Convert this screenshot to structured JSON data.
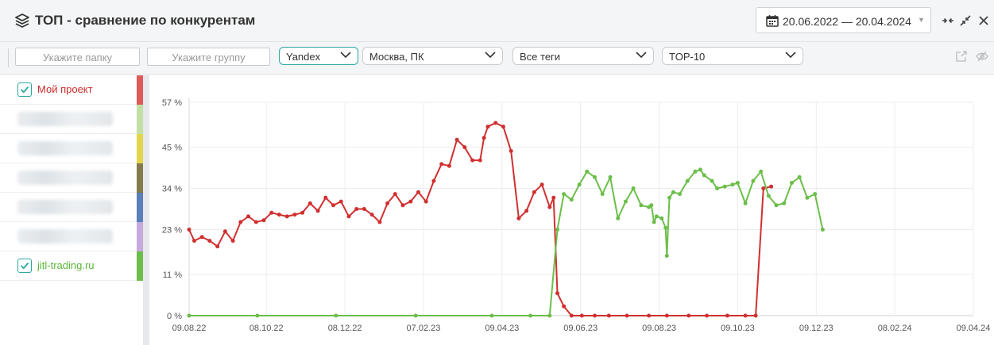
{
  "header": {
    "title": "ТОП - сравнение по конкурентам",
    "date_range": "20.06.2022 — 20.04.2024"
  },
  "filters": {
    "folder_placeholder": "Укажите папку",
    "group_placeholder": "Укажите группу",
    "search_engine": "Yandex",
    "region": "Москва, ПК",
    "tags": "Все теги",
    "top": "TOP-10"
  },
  "legend": {
    "items": [
      {
        "label": "Мой проект",
        "checked": true,
        "color": "#e05a5a",
        "text_color": "#cc2a2a",
        "blurred": false
      },
      {
        "label": "",
        "checked": false,
        "color": "#c2e0a4",
        "blurred": true
      },
      {
        "label": "",
        "checked": false,
        "color": "#e3d64a",
        "blurred": true
      },
      {
        "label": "",
        "checked": false,
        "color": "#857a4c",
        "blurred": true
      },
      {
        "label": "",
        "checked": false,
        "color": "#5b7fba",
        "blurred": true
      },
      {
        "label": "",
        "checked": false,
        "color": "#c6a9dd",
        "blurred": true
      },
      {
        "label": "jitl-trading.ru",
        "checked": true,
        "color": "#6cbe4a",
        "text_color": "#5cb83a",
        "blurred": false
      }
    ]
  },
  "chart_data": {
    "type": "line",
    "xlabel": "",
    "ylabel": "",
    "x_tick_labels": [
      "09.08.22",
      "08.10.22",
      "08.12.22",
      "07.02.23",
      "09.04.23",
      "09.06.23",
      "09.08.23",
      "09.10.23",
      "09.12.23",
      "08.02.24",
      "09.04.24"
    ],
    "y_tick_labels": [
      "0 %",
      "11 %",
      "23 %",
      "34 %",
      "45 %",
      "57 %"
    ],
    "ylim": [
      0,
      57
    ],
    "grid": true,
    "series": [
      {
        "name": "Мой проект",
        "color": "#d0302f",
        "points": [
          [
            "09.08.22",
            23
          ],
          [
            "13.08.22",
            20
          ],
          [
            "19.08.22",
            21
          ],
          [
            "25.08.22",
            20
          ],
          [
            "31.08.22",
            18.5
          ],
          [
            "06.09.22",
            22.5
          ],
          [
            "12.09.22",
            20
          ],
          [
            "18.09.22",
            25
          ],
          [
            "24.09.22",
            26.5
          ],
          [
            "30.09.22",
            25
          ],
          [
            "06.10.22",
            25.5
          ],
          [
            "12.10.22",
            27.5
          ],
          [
            "18.10.22",
            27
          ],
          [
            "24.10.22",
            26.5
          ],
          [
            "30.10.22",
            27
          ],
          [
            "05.11.22",
            27.5
          ],
          [
            "11.11.22",
            30
          ],
          [
            "17.11.22",
            28
          ],
          [
            "23.11.22",
            31.5
          ],
          [
            "29.11.22",
            29.5
          ],
          [
            "05.12.22",
            30.5
          ],
          [
            "11.12.22",
            26.5
          ],
          [
            "17.12.22",
            28.5
          ],
          [
            "23.12.22",
            28.5
          ],
          [
            "29.12.22",
            27
          ],
          [
            "04.01.23",
            25
          ],
          [
            "10.01.23",
            30
          ],
          [
            "16.01.23",
            32.5
          ],
          [
            "22.01.23",
            29.5
          ],
          [
            "28.01.23",
            30.5
          ],
          [
            "03.02.23",
            33
          ],
          [
            "09.02.23",
            30.5
          ],
          [
            "15.02.23",
            36
          ],
          [
            "21.02.23",
            40.5
          ],
          [
            "27.02.23",
            40
          ],
          [
            "05.03.23",
            47
          ],
          [
            "11.03.23",
            45
          ],
          [
            "17.03.23",
            41.5
          ],
          [
            "23.03.23",
            41.5
          ],
          [
            "26.03.23",
            47.5
          ],
          [
            "29.03.23",
            50.5
          ],
          [
            "04.04.23",
            51.5
          ],
          [
            "10.04.23",
            50.5
          ],
          [
            "16.04.23",
            44
          ],
          [
            "22.04.23",
            26
          ],
          [
            "28.04.23",
            28
          ],
          [
            "04.05.23",
            33
          ],
          [
            "10.05.23",
            35
          ],
          [
            "16.05.23",
            29
          ],
          [
            "19.05.23",
            31.5
          ],
          [
            "22.05.23",
            6
          ],
          [
            "27.05.23",
            2.5
          ],
          [
            "02.06.23",
            0
          ],
          [
            "10.06.23",
            0
          ],
          [
            "20.06.23",
            0
          ],
          [
            "01.07.23",
            0
          ],
          [
            "15.07.23",
            0
          ],
          [
            "01.08.23",
            0
          ],
          [
            "15.08.23",
            0
          ],
          [
            "01.09.23",
            0
          ],
          [
            "15.09.23",
            0
          ],
          [
            "01.10.23",
            0
          ],
          [
            "15.10.23",
            0
          ],
          [
            "23.10.23",
            0
          ],
          [
            "29.10.23",
            34
          ],
          [
            "04.11.23",
            34.5
          ]
        ]
      },
      {
        "name": "jitl-trading.ru",
        "color": "#6cbe4a",
        "points": [
          [
            "09.08.22",
            0
          ],
          [
            "01.10.22",
            0
          ],
          [
            "01.12.22",
            0
          ],
          [
            "01.02.23",
            0
          ],
          [
            "01.04.23",
            0
          ],
          [
            "01.05.23",
            0
          ],
          [
            "16.05.23",
            0
          ],
          [
            "22.05.23",
            23
          ],
          [
            "27.05.23",
            32.5
          ],
          [
            "02.06.23",
            31
          ],
          [
            "08.06.23",
            35
          ],
          [
            "14.06.23",
            38.5
          ],
          [
            "20.06.23",
            37
          ],
          [
            "26.06.23",
            32.5
          ],
          [
            "02.07.23",
            37
          ],
          [
            "08.07.23",
            26
          ],
          [
            "14.07.23",
            30.5
          ],
          [
            "20.07.23",
            34
          ],
          [
            "26.07.23",
            29.5
          ],
          [
            "01.08.23",
            29
          ],
          [
            "03.08.23",
            29.5
          ],
          [
            "05.08.23",
            25
          ],
          [
            "07.08.23",
            26.5
          ],
          [
            "11.08.23",
            26
          ],
          [
            "14.08.23",
            23.5
          ],
          [
            "15.08.23",
            16
          ],
          [
            "17.08.23",
            31.5
          ],
          [
            "20.08.23",
            33
          ],
          [
            "25.08.23",
            32.5
          ],
          [
            "31.08.23",
            36
          ],
          [
            "06.09.23",
            38.5
          ],
          [
            "10.09.23",
            39
          ],
          [
            "13.09.23",
            37.5
          ],
          [
            "19.09.23",
            36
          ],
          [
            "23.09.23",
            34
          ],
          [
            "29.09.23",
            34.5
          ],
          [
            "05.10.23",
            35
          ],
          [
            "09.10.23",
            35.5
          ],
          [
            "15.10.23",
            30
          ],
          [
            "21.10.23",
            36
          ],
          [
            "27.10.23",
            38.5
          ],
          [
            "02.11.23",
            32
          ],
          [
            "08.11.23",
            29.5
          ],
          [
            "14.11.23",
            30
          ],
          [
            "20.11.23",
            35.5
          ],
          [
            "26.11.23",
            37
          ],
          [
            "02.12.23",
            31.5
          ],
          [
            "08.12.23",
            32.5
          ],
          [
            "14.12.23",
            23
          ]
        ]
      }
    ]
  }
}
